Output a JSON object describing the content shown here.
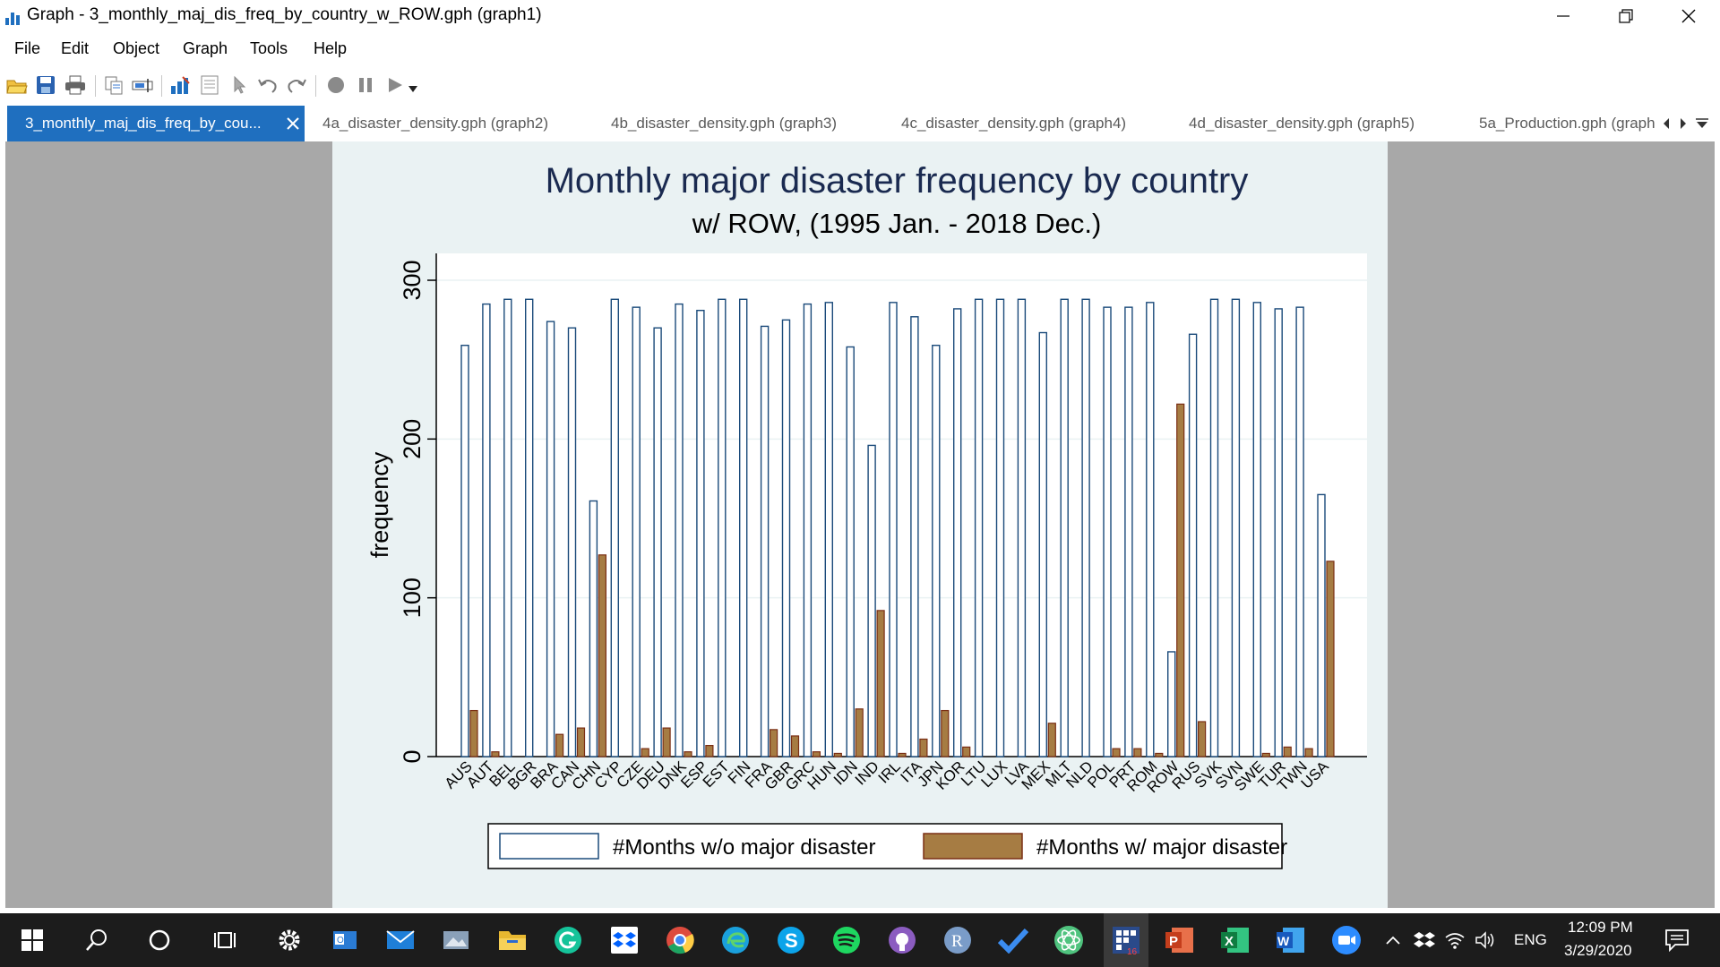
{
  "window": {
    "title": "Graph - 3_monthly_maj_dis_freq_by_country_w_ROW.gph (graph1)",
    "accent_color": "#1f6fbf"
  },
  "menu": [
    "File",
    "Edit",
    "Object",
    "Graph",
    "Tools",
    "Help"
  ],
  "toolbar_icons": [
    "open-icon",
    "save-icon",
    "print-icon",
    "copy-icon",
    "rename-icon",
    "graph-editor-icon",
    "data-editor-icon",
    "pointer-icon",
    "undo-icon",
    "redo-icon",
    "record-icon",
    "pause-icon",
    "play-icon"
  ],
  "tabs": [
    {
      "label": "3_monthly_maj_dis_freq_by_cou...",
      "active": true
    },
    {
      "label": "4a_disaster_density.gph (graph2)",
      "active": false
    },
    {
      "label": "4b_disaster_density.gph (graph3)",
      "active": false
    },
    {
      "label": "4c_disaster_density.gph (graph4)",
      "active": false
    },
    {
      "label": "4d_disaster_density.gph (graph5)",
      "active": false
    },
    {
      "label": "5a_Production.gph (graph",
      "active": false
    }
  ],
  "chart_data": {
    "type": "bar",
    "title": "Monthly major disaster frequency by country",
    "subtitle": "w/ ROW, (1995 Jan. - 2018 Dec.)",
    "ylabel": "frequency",
    "ylim": [
      0,
      300
    ],
    "yticks": [
      0,
      100,
      200,
      300
    ],
    "grid": true,
    "legend_position": "bottom",
    "categories": [
      "AUS",
      "AUT",
      "BEL",
      "BGR",
      "BRA",
      "CAN",
      "CHN",
      "CYP",
      "CZE",
      "DEU",
      "DNK",
      "ESP",
      "EST",
      "FIN",
      "FRA",
      "GBR",
      "GRC",
      "HUN",
      "IDN",
      "IND",
      "IRL",
      "ITA",
      "JPN",
      "KOR",
      "LTU",
      "LUX",
      "LVA",
      "MEX",
      "MLT",
      "NLD",
      "POL",
      "PRT",
      "ROM",
      "ROW",
      "RUS",
      "SVK",
      "SVN",
      "SWE",
      "TUR",
      "TWN",
      "USA"
    ],
    "series": [
      {
        "name": "#Months w/o major disaster",
        "color": "#ffffff",
        "stroke": "#1a4a7a",
        "values": [
          259,
          285,
          288,
          288,
          274,
          270,
          161,
          288,
          283,
          270,
          285,
          281,
          288,
          288,
          271,
          275,
          285,
          286,
          258,
          196,
          286,
          277,
          259,
          282,
          288,
          288,
          288,
          267,
          288,
          288,
          283,
          283,
          286,
          66,
          266,
          288,
          288,
          286,
          282,
          283,
          165
        ]
      },
      {
        "name": "#Months w/ major disaster",
        "color": "#a67c43",
        "stroke": "#7a2e14",
        "values": [
          29,
          3,
          0,
          0,
          14,
          18,
          127,
          0,
          5,
          18,
          3,
          7,
          0,
          0,
          17,
          13,
          3,
          2,
          30,
          92,
          2,
          11,
          29,
          6,
          0,
          0,
          0,
          21,
          0,
          0,
          5,
          5,
          2,
          222,
          22,
          0,
          0,
          2,
          6,
          5,
          123
        ]
      }
    ]
  },
  "taskbar": {
    "time": "12:09 PM",
    "date": "3/29/2020",
    "language": "ENG",
    "badge": "16",
    "icons": [
      "windows-start-icon",
      "search-icon",
      "cortana-icon",
      "task-view-icon",
      "settings-icon",
      "outlook-icon",
      "mail-icon",
      "photos-icon",
      "file-explorer-icon",
      "grammarly-icon",
      "dropbox-icon",
      "chrome-icon",
      "edge-icon",
      "skype-icon",
      "spotify-icon",
      "github-icon",
      "r-icon",
      "todo-icon",
      "atom-icon",
      "stata-icon",
      "powerpoint-icon",
      "excel-icon",
      "word-icon",
      "zoom-icon"
    ]
  }
}
